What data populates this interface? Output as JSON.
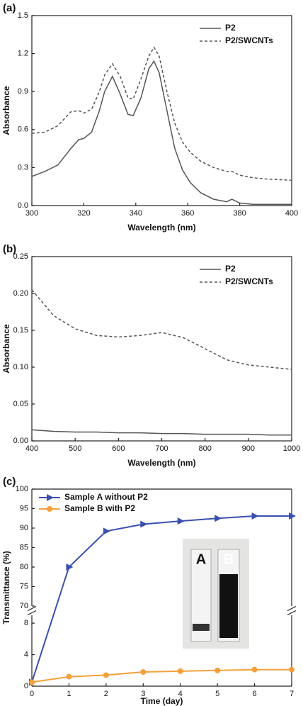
{
  "chart_data": [
    {
      "type": "line",
      "label": "(a)",
      "xlabel": "Wavelength (nm)",
      "ylabel": "Absorbance",
      "x": [
        300,
        305,
        310,
        315,
        318,
        320,
        323,
        326,
        328,
        331,
        334,
        337,
        339,
        342,
        345,
        347,
        349,
        352,
        355,
        358,
        361,
        365,
        370,
        375,
        377,
        380,
        385,
        390,
        400
      ],
      "xlim": [
        300,
        400
      ],
      "xticks": [
        300,
        320,
        340,
        360,
        380,
        400
      ],
      "ylim": [
        0,
        1.5
      ],
      "yticks": [
        {
          "value": 0,
          "label": "0.0"
        },
        0.3,
        0.6,
        0.9,
        1.2,
        1.5
      ],
      "legend": "upper right",
      "series": [
        {
          "name": "P2",
          "color": "#555555",
          "style": "solid",
          "values": [
            0.23,
            0.27,
            0.32,
            0.45,
            0.52,
            0.53,
            0.58,
            0.75,
            0.9,
            1.02,
            0.88,
            0.72,
            0.71,
            0.85,
            1.08,
            1.14,
            1.05,
            0.75,
            0.45,
            0.28,
            0.18,
            0.1,
            0.05,
            0.03,
            0.05,
            0.02,
            0.01,
            0.01,
            0.01
          ]
        },
        {
          "name": "P2/SWCNTs",
          "color": "#555555",
          "style": "dashed",
          "values": [
            0.57,
            0.58,
            0.63,
            0.74,
            0.75,
            0.73,
            0.76,
            0.9,
            1.03,
            1.12,
            1.02,
            0.85,
            0.84,
            1.0,
            1.18,
            1.25,
            1.18,
            0.9,
            0.65,
            0.5,
            0.42,
            0.35,
            0.3,
            0.27,
            0.27,
            0.24,
            0.22,
            0.21,
            0.2
          ]
        }
      ]
    },
    {
      "type": "line",
      "label": "(b)",
      "xlabel": "Wavelength (nm)",
      "ylabel": "Absorbance",
      "x": [
        400,
        450,
        500,
        550,
        600,
        650,
        700,
        750,
        800,
        850,
        900,
        950,
        1000
      ],
      "xlim": [
        400,
        1000
      ],
      "xticks": [
        400,
        500,
        600,
        700,
        800,
        900,
        1000
      ],
      "ylim": [
        0,
        0.25
      ],
      "yticks": [
        {
          "value": 0,
          "label": "0.00"
        },
        {
          "value": 0.05,
          "label": "0.05"
        },
        {
          "value": 0.1,
          "label": "0.10"
        },
        {
          "value": 0.15,
          "label": "0.15"
        },
        {
          "value": 0.2,
          "label": "0.20"
        },
        {
          "value": 0.25,
          "label": "0.25"
        }
      ],
      "legend": "upper right",
      "series": [
        {
          "name": "P2",
          "color": "#555555",
          "style": "solid",
          "values": [
            0.015,
            0.013,
            0.012,
            0.012,
            0.011,
            0.011,
            0.01,
            0.01,
            0.009,
            0.009,
            0.009,
            0.008,
            0.008
          ]
        },
        {
          "name": "P2/SWCNTs",
          "color": "#555555",
          "style": "dashed",
          "values": [
            0.205,
            0.17,
            0.152,
            0.143,
            0.141,
            0.143,
            0.147,
            0.14,
            0.125,
            0.11,
            0.103,
            0.1,
            0.097
          ]
        }
      ]
    },
    {
      "type": "line",
      "label": "(c)",
      "xlabel": "Time (day)",
      "ylabel": "Transmittance (%)",
      "x": [
        0,
        1,
        2,
        3,
        4,
        5,
        6,
        7
      ],
      "xlim": [
        0,
        7
      ],
      "xticks": [
        0,
        1,
        2,
        3,
        4,
        5,
        6,
        7
      ],
      "ylim_segments": [
        [
          0,
          9
        ],
        [
          70,
          100
        ]
      ],
      "yticks": [
        0,
        4,
        8,
        70,
        75,
        80,
        85,
        90,
        95,
        100
      ],
      "legend": "upper left",
      "inset_labels": [
        "A",
        "B"
      ],
      "series": [
        {
          "name": "Sample A without P2",
          "color": "#3a4fb0",
          "marker": "triangle",
          "values": [
            0.5,
            80,
            89.2,
            91,
            91.8,
            92.5,
            93.1,
            93.1
          ]
        },
        {
          "name": "Sample B with P2",
          "color": "#f5a03a",
          "marker": "circle",
          "values": [
            0.5,
            1.2,
            1.4,
            1.8,
            1.9,
            2.0,
            2.1,
            2.1
          ]
        }
      ]
    }
  ]
}
